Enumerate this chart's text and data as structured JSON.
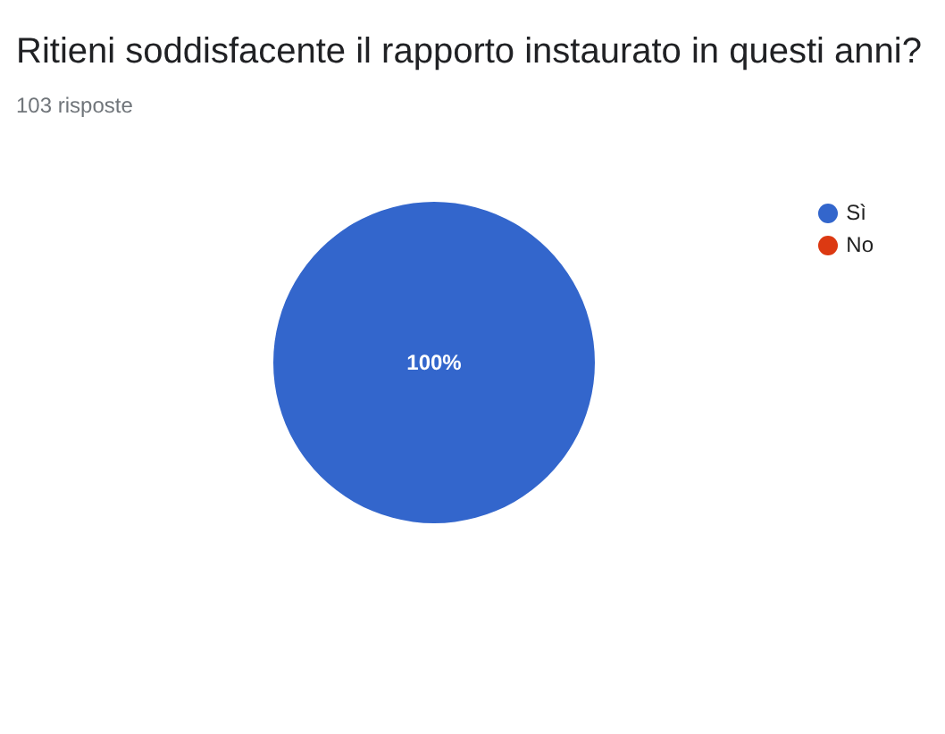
{
  "chart_data": {
    "type": "pie",
    "title": "Ritieni soddisfacente il rapporto instaurato in questi anni?",
    "subtitle": "103 risposte",
    "categories": [
      "Sì",
      "No"
    ],
    "values": [
      100,
      0
    ],
    "colors": [
      "#3366cc",
      "#dc3912"
    ],
    "value_labels": [
      "100%",
      null
    ],
    "legend": "top right"
  }
}
